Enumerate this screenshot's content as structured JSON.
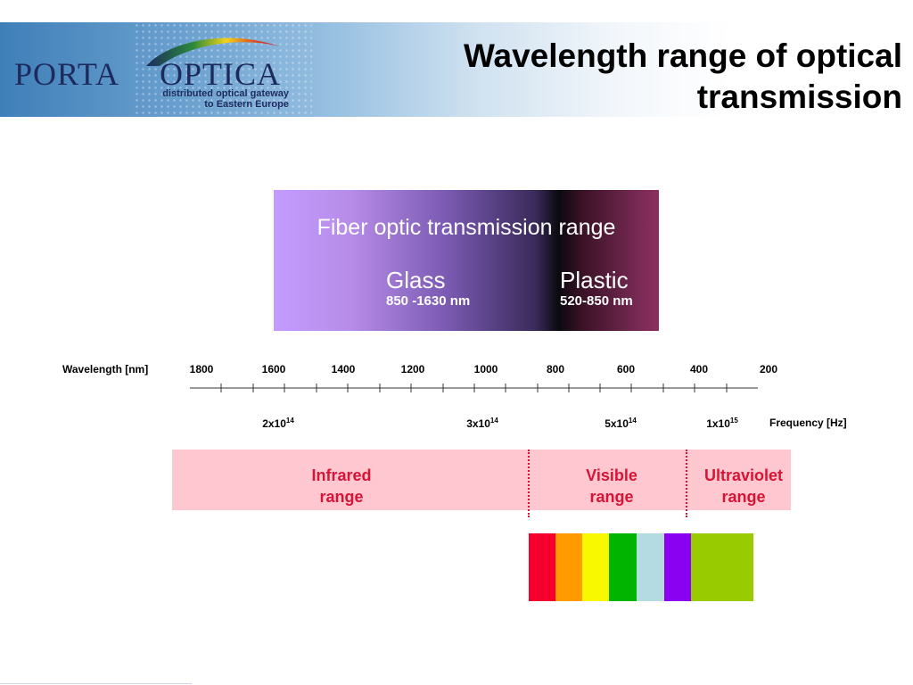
{
  "header": {
    "logo": {
      "word_left": "PORTA",
      "word_right": "OPTICA",
      "tagline_line1": "distributed optical gateway",
      "tagline_line2": "to Eastern Europe"
    },
    "title_line1": "Wavelength range of optical",
    "title_line2": "transmission"
  },
  "fiber_box": {
    "title": "Fiber optic transmission range",
    "glass": {
      "name": "Glass",
      "range": "850 -1630 nm"
    },
    "plastic": {
      "name": "Plastic",
      "range": "520-850 nm"
    }
  },
  "wavelength_axis": {
    "label": "Wavelength [nm]",
    "ticks": [
      "1800",
      "1600",
      "1400",
      "1200",
      "1000",
      "800",
      "600",
      "400",
      "200"
    ]
  },
  "frequency_axis": {
    "label": "Frequency [Hz]",
    "ticks": [
      {
        "mantissa": "2x10",
        "exp": "14"
      },
      {
        "mantissa": "3x10",
        "exp": "14"
      },
      {
        "mantissa": "5x10",
        "exp": "14"
      },
      {
        "mantissa": "1x10",
        "exp": "15"
      }
    ]
  },
  "ranges": {
    "infrared_line1": "Infrared",
    "infrared_line2": "range",
    "visible_line1": "Visible",
    "visible_line2": "range",
    "ultraviolet_line1": "Ultraviolet",
    "ultraviolet_line2": "range"
  },
  "spectrum_colors": [
    "#f5002e",
    "#ff9a00",
    "#f8f800",
    "#00b400",
    "#b4dce0",
    "#8a00f0",
    "#99cc00"
  ],
  "colors": {
    "range_text": "#d81436",
    "range_band": "#ffc7d0"
  }
}
